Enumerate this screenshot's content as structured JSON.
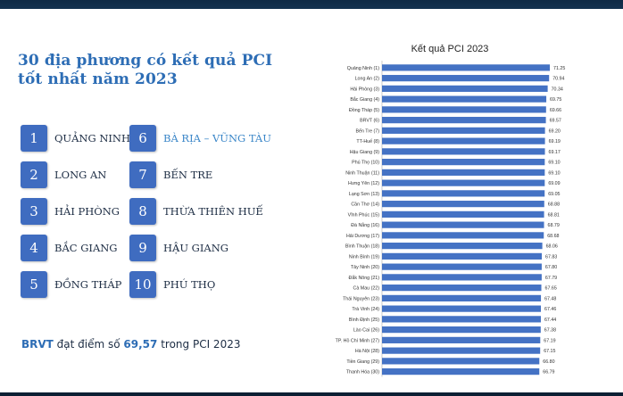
{
  "headline": {
    "line1": "30 địa phương có kết quả PCI",
    "line2": "tốt nhất năm 2023"
  },
  "ranks": [
    {
      "num": "1",
      "name": "QUẢNG NINH"
    },
    {
      "num": "2",
      "name": "LONG AN"
    },
    {
      "num": "3",
      "name": "HẢI PHÒNG"
    },
    {
      "num": "4",
      "name": "BẮC GIANG"
    },
    {
      "num": "5",
      "name": "ĐỒNG THÁP"
    },
    {
      "num": "6",
      "name": "BÀ RỊA – VŨNG TÀU"
    },
    {
      "num": "7",
      "name": "BẾN TRE"
    },
    {
      "num": "8",
      "name": "THỪA THIÊN HUẾ"
    },
    {
      "num": "9",
      "name": "HẬU GIANG"
    },
    {
      "num": "10",
      "name": "PHÚ THỌ"
    }
  ],
  "summary": {
    "subject": "BRVT",
    "text1": " đạt điểm số ",
    "score": "69,57",
    "text2": " trong PCI 2023"
  },
  "colors": {
    "accent": "#2d6db5",
    "box": "#3f6cc0",
    "bar": "#4472c4",
    "highlight": "#3a86c8"
  },
  "chart_data": {
    "type": "bar",
    "orientation": "horizontal",
    "title": "Kết quả PCI 2023",
    "xlabel": "",
    "ylabel": "",
    "xlim": [
      0,
      72
    ],
    "grid": false,
    "categories": [
      "Quảng Ninh (1)",
      "Long An (2)",
      "Hải Phòng (3)",
      "Bắc Giang (4)",
      "Đồng Tháp (5)",
      "BRVT (6)",
      "Bến Tre (7)",
      "TT-Huế (8)",
      "Hậu Giang (9)",
      "Phú Thọ (10)",
      "Ninh Thuận (11)",
      "Hưng Yên (12)",
      "Lạng Sơn (13)",
      "Cần Thơ (14)",
      "Vĩnh Phúc (15)",
      "Đà Nẵng (16)",
      "Hải Dương (17)",
      "Bình Thuận (18)",
      "Ninh Bình (19)",
      "Tây Ninh (20)",
      "Đắk Nông (21)",
      "Cà Mau (22)",
      "Thái Nguyên (23)",
      "Trà Vinh (24)",
      "Bình Định (25)",
      "Lào Cai (26)",
      "TP. Hồ Chí Minh (27)",
      "Hà Nội (28)",
      "Tiền Giang (29)",
      "Thanh Hóa (30)"
    ],
    "values": [
      71.25,
      70.94,
      70.34,
      69.75,
      69.66,
      69.57,
      69.2,
      69.19,
      69.17,
      69.1,
      69.1,
      69.09,
      69.05,
      68.88,
      68.81,
      68.79,
      68.68,
      68.06,
      67.83,
      67.8,
      67.79,
      67.65,
      67.48,
      67.46,
      67.44,
      67.38,
      67.19,
      67.15,
      66.8,
      66.79
    ],
    "value_labels": [
      "71.25",
      "70.94",
      "70.34",
      "69.75",
      "69.66",
      "69.57",
      "69.20",
      "69.19",
      "69.17",
      "69.10",
      "69.10",
      "69.09",
      "69.05",
      "68.88",
      "68.81",
      "68.79",
      "68.68",
      "68.06",
      "67.83",
      "67.80",
      "67.79",
      "67.65",
      "67.48",
      "67.46",
      "67.44",
      "67.38",
      "67.19",
      "67.15",
      "66.80",
      "66.79"
    ]
  }
}
